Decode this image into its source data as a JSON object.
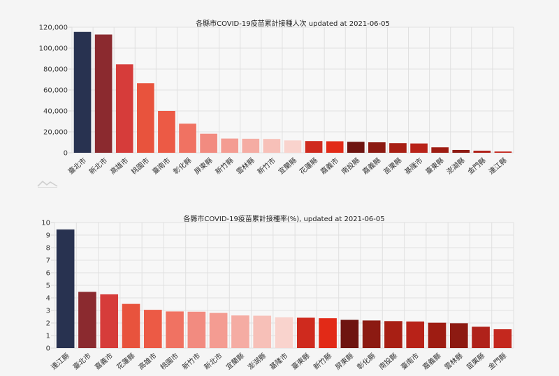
{
  "chart_data": [
    {
      "type": "bar",
      "title": "各縣市COVID-19疫苗累計接種人次 updated at 2021-06-05",
      "xlabel": "",
      "ylabel": "",
      "ylim": [
        0,
        120000
      ],
      "yticks": [
        "0",
        "20,000",
        "40,000",
        "60,000",
        "80,000",
        "100,000",
        "120,000"
      ],
      "grid": true,
      "legend": "none",
      "categories": [
        "臺北市",
        "新北市",
        "高雄市",
        "桃園市",
        "臺南市",
        "彰化縣",
        "屏東縣",
        "新竹縣",
        "雲林縣",
        "新竹市",
        "宜蘭縣",
        "花蓮縣",
        "嘉義市",
        "南投縣",
        "嘉義縣",
        "苗栗縣",
        "基隆市",
        "臺東縣",
        "澎湖縣",
        "金門縣",
        "連江縣"
      ],
      "values": [
        115500,
        113000,
        84500,
        66500,
        40000,
        27800,
        18200,
        13600,
        13400,
        13200,
        11800,
        11200,
        11000,
        10500,
        10000,
        9200,
        8900,
        5200,
        2700,
        2000,
        1200
      ],
      "colors": [
        "#283250",
        "#8b2a2f",
        "#d63c3a",
        "#e8533d",
        "#ec5a45",
        "#f07262",
        "#f28b80",
        "#f49c92",
        "#f5aca3",
        "#f7c0b8",
        "#f9d3cd",
        "#cf2a1e",
        "#e22a17",
        "#6e1410",
        "#8c1a12",
        "#a81f14",
        "#b82218",
        "#9e1c12",
        "#8d1a12",
        "#b0221a",
        "#c4281e"
      ]
    },
    {
      "type": "bar",
      "title": "各縣市COVID-19疫苗累計接種率(%), updated at 2021-06-05",
      "xlabel": "",
      "ylabel": "",
      "ylim": [
        0,
        10
      ],
      "yticks": [
        "0",
        "1",
        "2",
        "3",
        "4",
        "5",
        "6",
        "7",
        "8",
        "9",
        "10"
      ],
      "grid": true,
      "legend": "none",
      "categories": [
        "連江縣",
        "臺北市",
        "嘉義市",
        "花蓮縣",
        "高雄市",
        "桃園市",
        "新竹市",
        "新北市",
        "宜蘭縣",
        "澎湖縣",
        "基隆市",
        "臺東縣",
        "新竹縣",
        "屏東縣",
        "彰化縣",
        "南投縣",
        "臺南市",
        "嘉義縣",
        "雲林縣",
        "苗栗縣",
        "金門縣"
      ],
      "values": [
        9.45,
        4.48,
        4.28,
        3.52,
        3.05,
        2.92,
        2.9,
        2.8,
        2.6,
        2.58,
        2.45,
        2.42,
        2.38,
        2.25,
        2.2,
        2.15,
        2.12,
        2.02,
        1.98,
        1.7,
        1.5
      ],
      "colors": [
        "#283250",
        "#8b2a2f",
        "#d63c3a",
        "#e8533d",
        "#ec5a45",
        "#f07262",
        "#f28b80",
        "#f49c92",
        "#f5aca3",
        "#f7c0b8",
        "#f9d3cd",
        "#cf2a1e",
        "#e22a17",
        "#6e1410",
        "#8c1a12",
        "#a81f14",
        "#b82218",
        "#9e1c12",
        "#8d1a12",
        "#b0221a",
        "#c4281e"
      ]
    }
  ]
}
